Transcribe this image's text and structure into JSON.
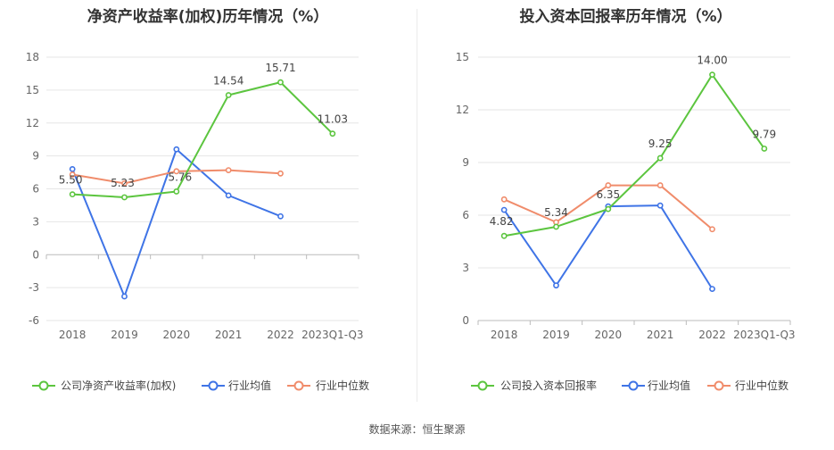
{
  "footer": {
    "source_label": "数据来源：",
    "source_name": "恒生聚源"
  },
  "chart_data": [
    {
      "type": "line",
      "title": "净资产收益率(加权)历年情况（%）",
      "categories": [
        "2018",
        "2019",
        "2020",
        "2021",
        "2022",
        "2023Q1-Q3"
      ],
      "ylim": [
        -6,
        18
      ],
      "yticks": [
        -6,
        -3,
        0,
        3,
        6,
        9,
        12,
        15,
        18
      ],
      "series": [
        {
          "name": "公司净资产收益率(加权)",
          "color": "#5cc53f",
          "values": [
            5.5,
            5.23,
            5.76,
            14.54,
            15.71,
            11.03
          ],
          "labels": [
            "5.50",
            "5.23",
            "5.76",
            "14.54",
            "15.71",
            "11.03"
          ]
        },
        {
          "name": "行业均值",
          "color": "#3f74e6",
          "values": [
            7.8,
            -3.8,
            9.6,
            5.4,
            3.5,
            null
          ]
        },
        {
          "name": "行业中位数",
          "color": "#f08c6b",
          "values": [
            7.3,
            6.5,
            7.6,
            7.7,
            7.4,
            null
          ]
        }
      ]
    },
    {
      "type": "line",
      "title": "投入资本回报率历年情况（%）",
      "categories": [
        "2018",
        "2019",
        "2020",
        "2021",
        "2022",
        "2023Q1-Q3"
      ],
      "ylim": [
        0,
        15
      ],
      "yticks": [
        0,
        3,
        6,
        9,
        12,
        15
      ],
      "series": [
        {
          "name": "公司投入资本回报率",
          "color": "#5cc53f",
          "values": [
            4.82,
            5.34,
            6.35,
            9.25,
            14.0,
            9.79
          ],
          "labels": [
            "4.82",
            "5.34",
            "6.35",
            "9.25",
            "14.00",
            "9.79"
          ]
        },
        {
          "name": "行业均值",
          "color": "#3f74e6",
          "values": [
            6.3,
            2.0,
            6.5,
            6.55,
            1.8,
            null
          ]
        },
        {
          "name": "行业中位数",
          "color": "#f08c6b",
          "values": [
            6.9,
            5.6,
            7.7,
            7.7,
            5.2,
            null
          ]
        }
      ]
    }
  ]
}
